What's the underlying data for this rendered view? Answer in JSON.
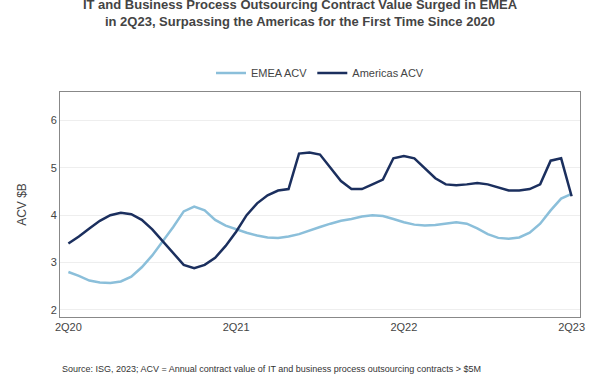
{
  "chart_data": {
    "type": "line",
    "title": "IT and Business Process Outsourcing Contract Value Surged in EMEA\nin 2Q23, Surpassing the Americas for the First Time Since 2020",
    "y_label": "ACV $B",
    "annotations": [
      "Source: ISG, 2023; ACV = Annual contract value of IT and business process outsourcing contracts > $5M"
    ],
    "x": [
      0,
      0.25,
      0.5,
      0.75,
      1,
      1.25,
      1.5,
      1.75,
      2,
      2.25,
      2.5,
      2.75,
      3,
      3.25,
      3.5,
      3.75,
      4,
      4.25,
      4.5,
      4.75,
      5,
      5.25,
      5.5,
      5.75,
      6,
      6.25,
      6.5,
      6.75,
      7,
      7.25,
      7.5,
      7.75,
      8,
      8.25,
      8.5,
      8.75,
      9,
      9.25,
      9.5,
      9.75,
      10,
      10.25,
      10.5,
      10.75,
      11,
      11.25,
      11.5,
      11.75,
      12
    ],
    "series": [
      {
        "name": "EMEA ACV",
        "color": "#8bbfda",
        "values": [
          2.8,
          2.72,
          2.62,
          2.58,
          2.57,
          2.6,
          2.7,
          2.9,
          3.15,
          3.45,
          3.75,
          4.08,
          4.18,
          4.1,
          3.9,
          3.78,
          3.7,
          3.63,
          3.57,
          3.53,
          3.52,
          3.55,
          3.6,
          3.68,
          3.75,
          3.82,
          3.88,
          3.92,
          3.97,
          4.0,
          3.98,
          3.92,
          3.85,
          3.8,
          3.78,
          3.79,
          3.82,
          3.85,
          3.82,
          3.72,
          3.6,
          3.52,
          3.5,
          3.53,
          3.63,
          3.82,
          4.1,
          4.35,
          4.45
        ]
      },
      {
        "name": "Americas ACV",
        "color": "#1b2f5e",
        "values": [
          3.4,
          3.55,
          3.72,
          3.88,
          4.0,
          4.05,
          4.02,
          3.9,
          3.7,
          3.45,
          3.2,
          2.95,
          2.88,
          2.95,
          3.1,
          3.35,
          3.65,
          4.0,
          4.25,
          4.42,
          4.52,
          4.55,
          5.3,
          5.32,
          5.28,
          5.0,
          4.72,
          4.55,
          4.55,
          4.65,
          4.75,
          5.2,
          5.25,
          5.2,
          5.0,
          4.78,
          4.65,
          4.63,
          4.65,
          4.68,
          4.65,
          4.58,
          4.52,
          4.52,
          4.55,
          4.65,
          5.15,
          5.2,
          4.4
        ]
      }
    ],
    "xlim": [
      -0.2,
      12.2
    ],
    "xticks": [
      {
        "value": 0,
        "label": "2Q20"
      },
      {
        "value": 4,
        "label": "2Q21"
      },
      {
        "value": 8,
        "label": "2Q22"
      },
      {
        "value": 12,
        "label": "2Q23"
      }
    ],
    "ylim": [
      1.85,
      6.6
    ],
    "yticks": [
      2,
      3,
      4,
      5,
      6
    ],
    "grid": "y",
    "legend": "upper center"
  }
}
